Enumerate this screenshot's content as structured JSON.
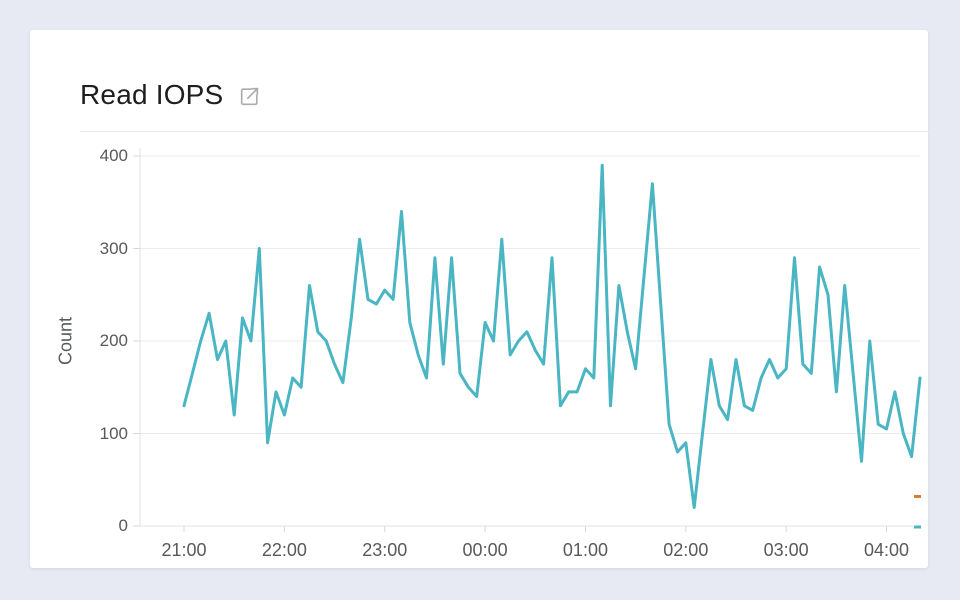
{
  "page": {
    "background_color": "#e7eaf3"
  },
  "card": {
    "title": "Read IOPS",
    "background_color": "#ffffff"
  },
  "icons": {
    "title_action_icon": "external-link",
    "icon_color": "#ababab"
  },
  "chart_data": {
    "type": "line",
    "title": "Read IOPS",
    "xlabel": "",
    "ylabel": "Count",
    "legend": "none",
    "grid": "horizontal-only",
    "ylim": [
      0,
      407
    ],
    "y_ticks": [
      0,
      100,
      200,
      300,
      400
    ],
    "x_ticks": [
      "21:00",
      "22:00",
      "23:00",
      "00:00",
      "01:00",
      "02:00",
      "03:00",
      "04:00"
    ],
    "x_tick_point_indices": [
      0,
      12,
      24,
      36,
      48,
      60,
      72,
      84
    ],
    "x_start": "21:00",
    "x_end": "04:20",
    "point_interval_minutes": 5,
    "line_color": "#4ab5c3",
    "grid_color": "#ececec",
    "axis_color": "#e3e3e3",
    "tick_color": "#d8d8d8",
    "values": [
      130,
      165,
      200,
      230,
      180,
      200,
      120,
      225,
      200,
      300,
      90,
      145,
      120,
      160,
      150,
      260,
      210,
      200,
      175,
      155,
      225,
      310,
      245,
      240,
      255,
      245,
      340,
      220,
      185,
      160,
      290,
      175,
      290,
      165,
      150,
      140,
      220,
      200,
      310,
      185,
      200,
      210,
      190,
      175,
      290,
      130,
      145,
      145,
      170,
      160,
      390,
      130,
      260,
      210,
      170,
      270,
      370,
      240,
      110,
      80,
      90,
      20,
      100,
      180,
      130,
      115,
      180,
      130,
      125,
      160,
      180,
      160,
      170,
      290,
      175,
      165,
      280,
      250,
      145,
      260,
      165,
      70,
      200,
      110,
      105,
      145,
      100,
      75,
      160
    ],
    "edge_markers": [
      {
        "color": "#d97d33",
        "value": 33
      },
      {
        "color": "#4ab5c3",
        "value": 0
      }
    ]
  }
}
